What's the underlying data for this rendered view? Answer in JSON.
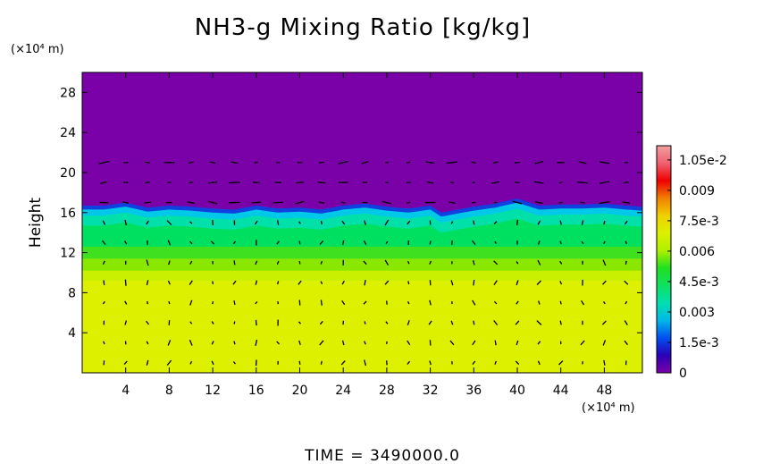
{
  "chart_data": {
    "type": "heatmap",
    "title": "NH3-g Mixing Ratio [kg/kg]",
    "ylabel": "Height",
    "xunit": "(×10⁴ m)",
    "yunit": "(×10⁴ m)",
    "xlim": [
      0,
      51.5
    ],
    "ylim": [
      0,
      30
    ],
    "xticks": [
      4,
      8,
      12,
      16,
      20,
      24,
      28,
      32,
      36,
      40,
      44,
      48
    ],
    "yticks": [
      4,
      8,
      12,
      16,
      20,
      24,
      28
    ],
    "colorbar": {
      "range": [
        0,
        0.0112
      ],
      "tick_values": [
        0,
        0.0015,
        0.003,
        0.0045,
        0.006,
        0.0075,
        0.009,
        0.0105
      ],
      "tick_labels": [
        "0",
        "1.5e-3",
        "0.003",
        "4.5e-3",
        "0.006",
        "7.5e-3",
        "0.009",
        "1.05e-2"
      ],
      "colors": [
        "#7a00a8",
        "#2a00b8",
        "#0050f0",
        "#00b8e8",
        "#00e0b0",
        "#10e060",
        "#20e020",
        "#b0f000",
        "#dcf000",
        "#f0d000",
        "#f08000",
        "#f00000",
        "#f06070",
        "#f0a0a0"
      ]
    },
    "layers": [
      {
        "from": 0,
        "to": 9.2,
        "value": 0.0078,
        "color": "#dcf000"
      },
      {
        "from": 9.2,
        "to": 10.2,
        "value": 0.0076,
        "color": "#c8f000"
      },
      {
        "from": 10.2,
        "to": 11.4,
        "value": 0.0072,
        "color": "#8ae800"
      },
      {
        "from": 11.4,
        "to": 12.6,
        "value": 0.0066,
        "color": "#3ee020"
      },
      {
        "from": 12.6,
        "to": 14.6,
        "value": 0.0058,
        "color": "#00e060"
      },
      {
        "from": 14.6,
        "to": 15.6,
        "value": 0.0048,
        "color": "#00e0a8"
      },
      {
        "from": 15.6,
        "to": 16.2,
        "value": 0.0038,
        "color": "#00c8e8"
      },
      {
        "from": 16.2,
        "to": 16.6,
        "value": 0.002,
        "color": "#1040e0"
      },
      {
        "from": 16.6,
        "to": 30,
        "value": 0.0,
        "color": "#7a00a8"
      }
    ],
    "interface_height": [
      [
        0,
        16.3
      ],
      [
        2,
        16.3
      ],
      [
        4,
        16.6
      ],
      [
        6,
        16.1
      ],
      [
        8,
        16.3
      ],
      [
        10,
        16.2
      ],
      [
        12,
        16.0
      ],
      [
        14,
        15.9
      ],
      [
        16,
        16.3
      ],
      [
        18,
        16.0
      ],
      [
        20,
        16.1
      ],
      [
        22,
        15.9
      ],
      [
        24,
        16.3
      ],
      [
        26,
        16.5
      ],
      [
        28,
        16.2
      ],
      [
        30,
        16.0
      ],
      [
        32,
        16.3
      ],
      [
        33,
        15.6
      ],
      [
        36,
        16.2
      ],
      [
        38,
        16.5
      ],
      [
        40,
        17.0
      ],
      [
        42,
        16.3
      ],
      [
        44,
        16.4
      ],
      [
        46,
        16.4
      ],
      [
        48,
        16.5
      ],
      [
        50,
        16.3
      ],
      [
        51.5,
        16.2
      ]
    ],
    "time_label": "TIME = 3490000.0"
  }
}
